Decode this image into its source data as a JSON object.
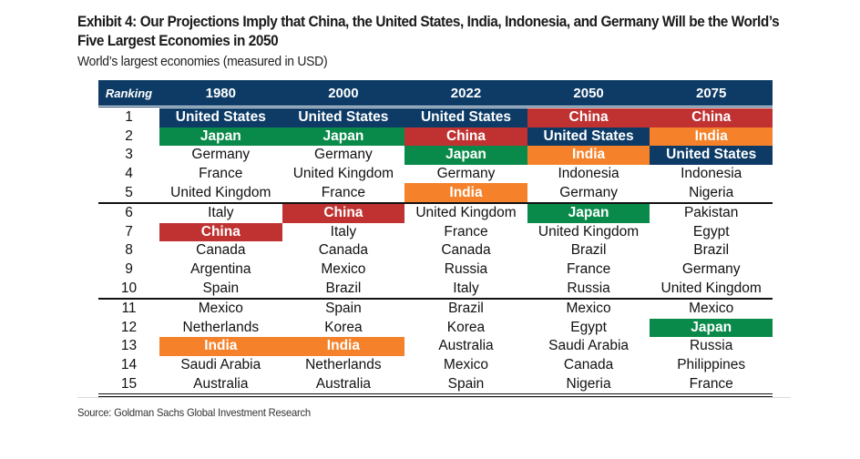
{
  "title": "Exhibit 4: Our Projections Imply that China, the United States, India, Indonesia, and Germany Will be the World’s Five Largest Economies in 2050",
  "subtitle": "World’s largest economies (measured in USD)",
  "source": "Source: Goldman Sachs Global Investment Research",
  "colors": {
    "United States": "#0d3b66",
    "Japan": "#0a8a4a",
    "China": "#c03232",
    "India": "#f5822a",
    "header": "#0d3b66"
  },
  "table": {
    "headers": [
      "Ranking",
      "1980",
      "2000",
      "2022",
      "2050",
      "2075"
    ],
    "highlighted": [
      "United States",
      "Japan",
      "China",
      "India"
    ],
    "rows": [
      {
        "rank": "1",
        "cells": [
          "United States",
          "United States",
          "United States",
          "China",
          "China"
        ]
      },
      {
        "rank": "2",
        "cells": [
          "Japan",
          "Japan",
          "China",
          "United States",
          "India"
        ]
      },
      {
        "rank": "3",
        "cells": [
          "Germany",
          "Germany",
          "Japan",
          "India",
          "United States"
        ]
      },
      {
        "rank": "4",
        "cells": [
          "France",
          "United Kingdom",
          "Germany",
          "Indonesia",
          "Indonesia"
        ]
      },
      {
        "rank": "5",
        "cells": [
          "United Kingdom",
          "France",
          "India",
          "Germany",
          "Nigeria"
        ]
      },
      {
        "rank": "6",
        "cells": [
          "Italy",
          "China",
          "United Kingdom",
          "Japan",
          "Pakistan"
        ]
      },
      {
        "rank": "7",
        "cells": [
          "China",
          "Italy",
          "France",
          "United Kingdom",
          "Egypt"
        ]
      },
      {
        "rank": "8",
        "cells": [
          "Canada",
          "Canada",
          "Canada",
          "Brazil",
          "Brazil"
        ]
      },
      {
        "rank": "9",
        "cells": [
          "Argentina",
          "Mexico",
          "Russia",
          "France",
          "Germany"
        ]
      },
      {
        "rank": "10",
        "cells": [
          "Spain",
          "Brazil",
          "Italy",
          "Russia",
          "United Kingdom"
        ]
      },
      {
        "rank": "11",
        "cells": [
          "Mexico",
          "Spain",
          "Brazil",
          "Mexico",
          "Mexico"
        ]
      },
      {
        "rank": "12",
        "cells": [
          "Netherlands",
          "Korea",
          "Korea",
          "Egypt",
          "Japan"
        ]
      },
      {
        "rank": "13",
        "cells": [
          "India",
          "India",
          "Australia",
          "Saudi Arabia",
          "Russia"
        ]
      },
      {
        "rank": "14",
        "cells": [
          "Saudi Arabia",
          "Netherlands",
          "Mexico",
          "Canada",
          "Philippines"
        ]
      },
      {
        "rank": "15",
        "cells": [
          "Australia",
          "Australia",
          "Spain",
          "Nigeria",
          "France"
        ]
      }
    ]
  }
}
